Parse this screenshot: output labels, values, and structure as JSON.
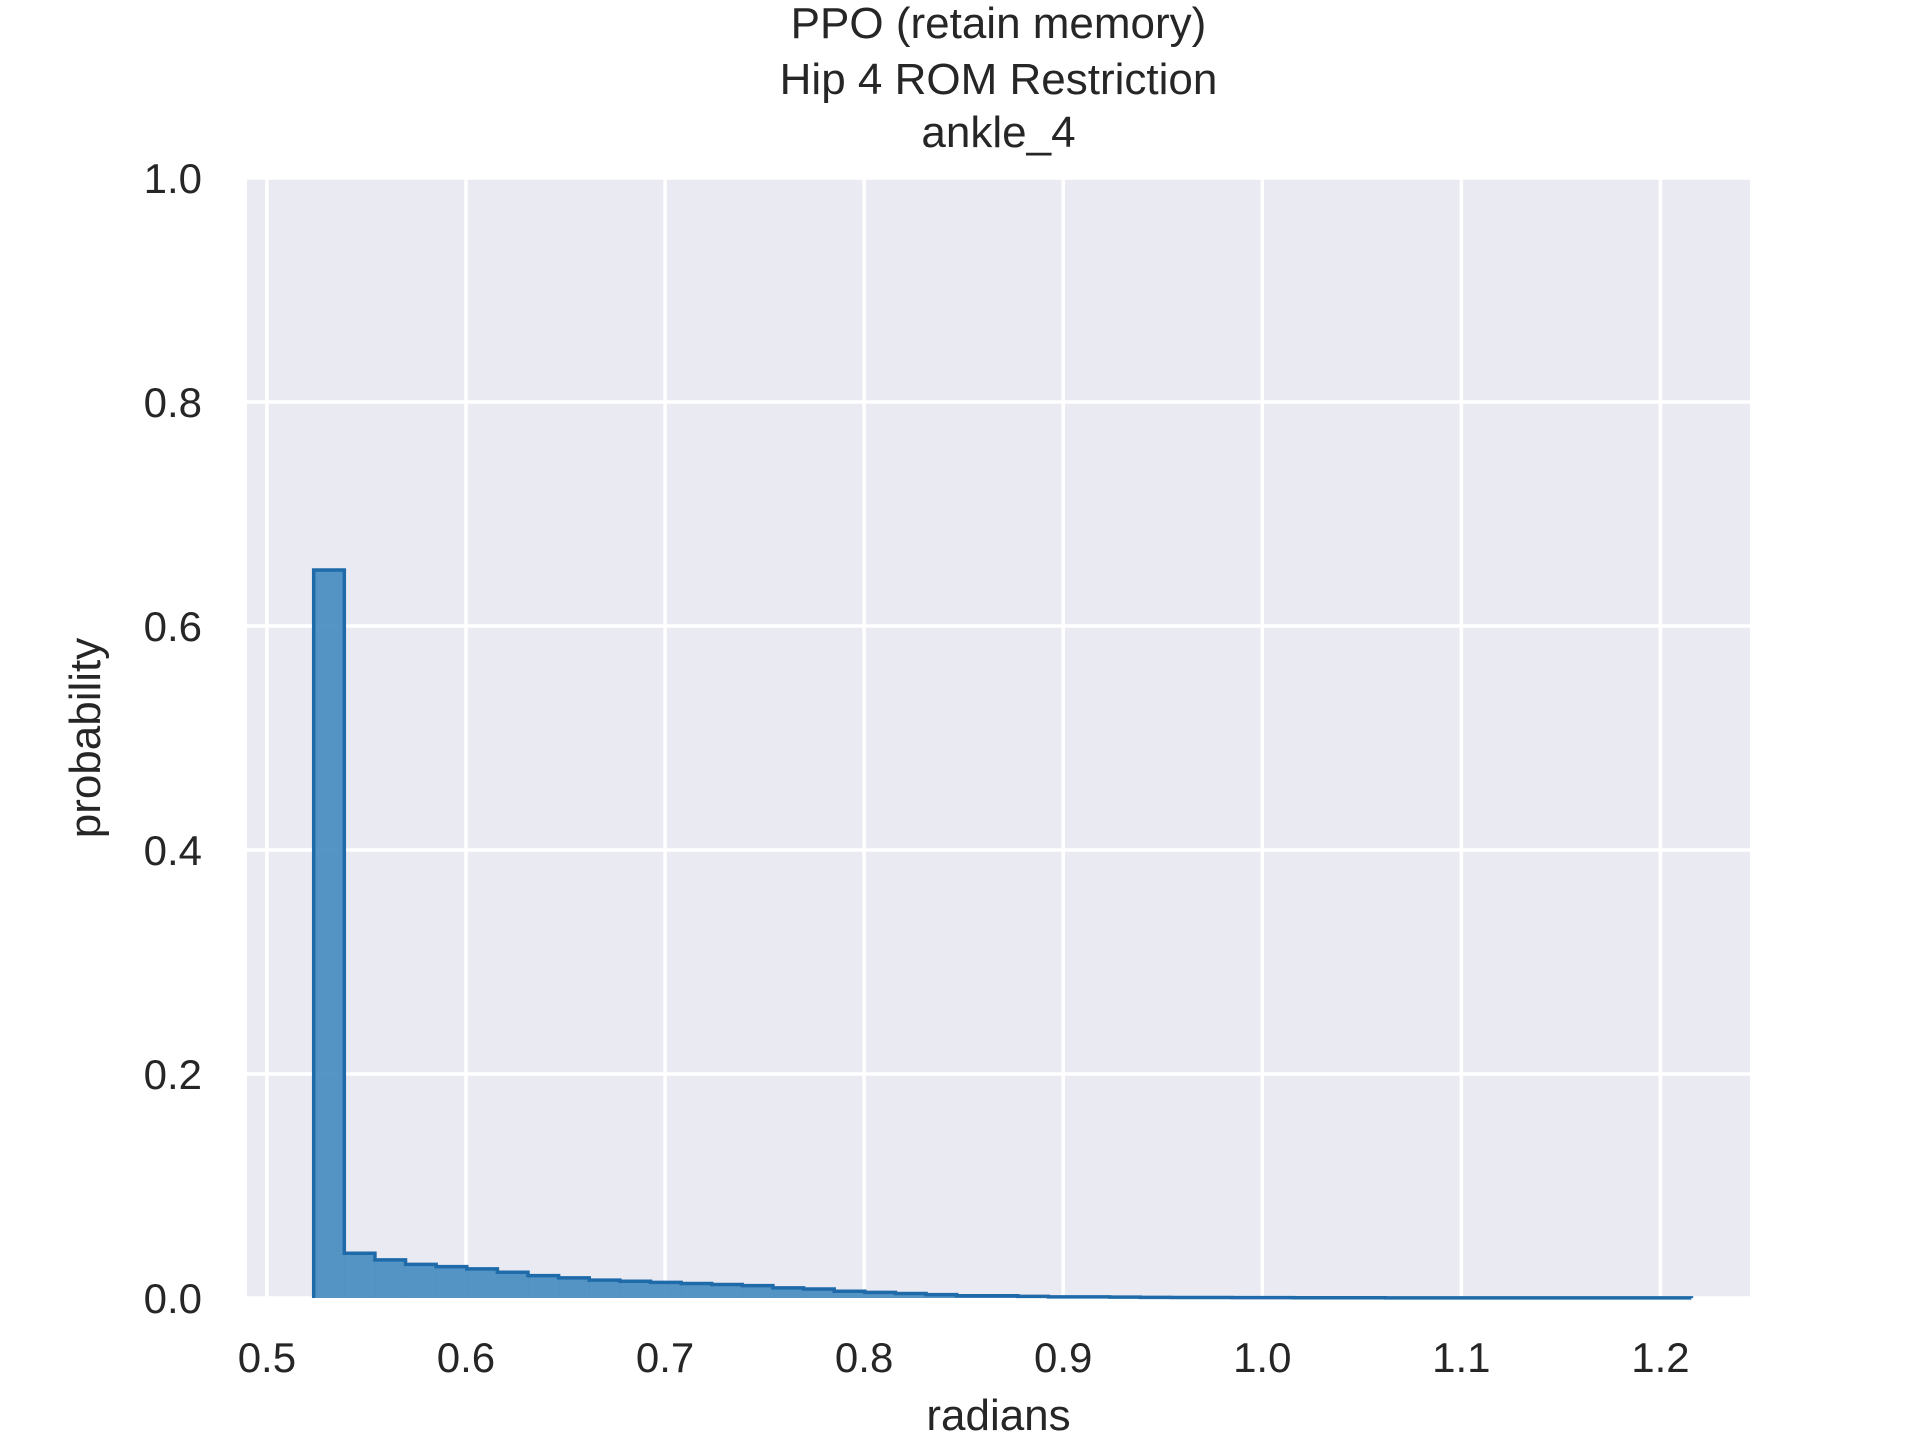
{
  "chart_data": {
    "type": "bar",
    "subtype": "step-histogram",
    "title_lines": [
      "PPO (retain memory)",
      "Hip 4 ROM Restriction",
      "ankle_4"
    ],
    "xlabel": "radians",
    "ylabel": "probability",
    "xlim": [
      0.49,
      1.245
    ],
    "ylim": [
      0.0,
      1.0
    ],
    "xticks": [
      0.5,
      0.6,
      0.7,
      0.8,
      0.9,
      1.0,
      1.1,
      1.2
    ],
    "xtick_labels": [
      "0.5",
      "0.6",
      "0.7",
      "0.8",
      "0.9",
      "1.0",
      "1.1",
      "1.2"
    ],
    "yticks": [
      0.0,
      0.2,
      0.4,
      0.6,
      0.8,
      1.0
    ],
    "ytick_labels": [
      "0.0",
      "0.2",
      "0.4",
      "0.6",
      "0.8",
      "1.0"
    ],
    "grid": true,
    "colors": {
      "plot_background": "#EAEAF2",
      "grid": "#FFFFFF",
      "fill": "#4C8FC2",
      "edge": "#1F6BAA"
    },
    "bin_start": 0.5235,
    "bin_width": 0.01538,
    "values": [
      0.65,
      0.04,
      0.034,
      0.03,
      0.028,
      0.026,
      0.023,
      0.02,
      0.018,
      0.016,
      0.015,
      0.014,
      0.013,
      0.012,
      0.011,
      0.009,
      0.008,
      0.006,
      0.005,
      0.004,
      0.003,
      0.002,
      0.002,
      0.0015,
      0.001,
      0.001,
      0.0008,
      0.0006,
      0.0005,
      0.0004,
      0.0003,
      0.0003,
      0.0002,
      0.0002,
      0.0002,
      0.0001,
      0.0001,
      0.0001,
      0.0001,
      0.0001,
      0.0001,
      0.0001,
      0.0001,
      0.0001,
      0.0001
    ]
  }
}
